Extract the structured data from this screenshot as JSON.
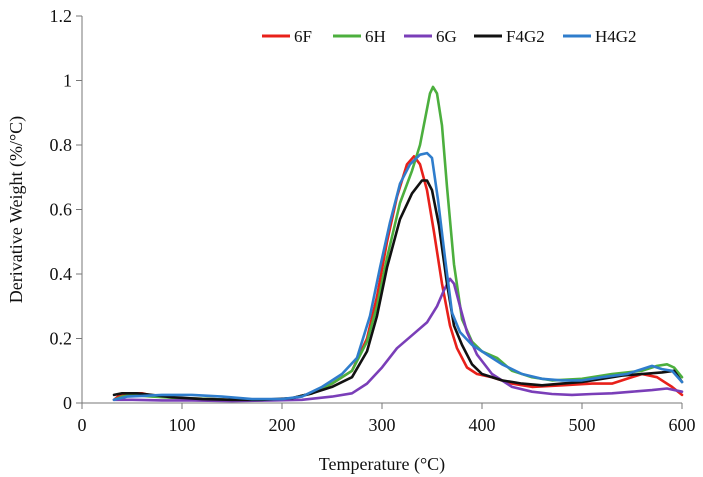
{
  "chart_data": {
    "type": "line",
    "title": "",
    "xlabel": "Temperature (°C)",
    "ylabel": "Derivative Weight  (%/°C)",
    "xlim": [
      0,
      600
    ],
    "ylim": [
      0,
      1.2
    ],
    "x_ticks": [
      0,
      100,
      200,
      300,
      400,
      500,
      600
    ],
    "x_tick_labels": [
      "0",
      "100",
      "200",
      "300",
      "400",
      "500",
      "600"
    ],
    "y_ticks": [
      0,
      0.2,
      0.4,
      0.6,
      0.8,
      1,
      1.2
    ],
    "y_tick_labels": [
      "0",
      "0.2",
      "0.4",
      "0.6",
      "0.8",
      "1",
      "1.2"
    ],
    "grid": false,
    "legend_position": "top-right",
    "series": [
      {
        "name": "6F",
        "color": "#e8201a",
        "points": [
          [
            32,
            0.01
          ],
          [
            38,
            0.025
          ],
          [
            50,
            0.03
          ],
          [
            60,
            0.03
          ],
          [
            75,
            0.02
          ],
          [
            100,
            0.015
          ],
          [
            130,
            0.012
          ],
          [
            160,
            0.008
          ],
          [
            190,
            0.01
          ],
          [
            210,
            0.015
          ],
          [
            230,
            0.03
          ],
          [
            250,
            0.06
          ],
          [
            270,
            0.1
          ],
          [
            285,
            0.2
          ],
          [
            295,
            0.33
          ],
          [
            305,
            0.5
          ],
          [
            315,
            0.64
          ],
          [
            325,
            0.74
          ],
          [
            332,
            0.765
          ],
          [
            338,
            0.74
          ],
          [
            345,
            0.66
          ],
          [
            352,
            0.53
          ],
          [
            360,
            0.37
          ],
          [
            368,
            0.24
          ],
          [
            375,
            0.17
          ],
          [
            385,
            0.11
          ],
          [
            395,
            0.09
          ],
          [
            410,
            0.08
          ],
          [
            430,
            0.06
          ],
          [
            450,
            0.05
          ],
          [
            480,
            0.055
          ],
          [
            510,
            0.06
          ],
          [
            530,
            0.06
          ],
          [
            545,
            0.075
          ],
          [
            560,
            0.09
          ],
          [
            575,
            0.08
          ],
          [
            590,
            0.05
          ],
          [
            600,
            0.025
          ]
        ]
      },
      {
        "name": "6H",
        "color": "#4caf3e",
        "points": [
          [
            32,
            0.01
          ],
          [
            40,
            0.02
          ],
          [
            50,
            0.025
          ],
          [
            70,
            0.02
          ],
          [
            100,
            0.015
          ],
          [
            130,
            0.012
          ],
          [
            160,
            0.008
          ],
          [
            190,
            0.01
          ],
          [
            210,
            0.015
          ],
          [
            230,
            0.03
          ],
          [
            250,
            0.06
          ],
          [
            270,
            0.1
          ],
          [
            285,
            0.19
          ],
          [
            295,
            0.3
          ],
          [
            305,
            0.45
          ],
          [
            318,
            0.62
          ],
          [
            330,
            0.72
          ],
          [
            338,
            0.8
          ],
          [
            343,
            0.88
          ],
          [
            348,
            0.96
          ],
          [
            351,
            0.98
          ],
          [
            355,
            0.96
          ],
          [
            360,
            0.86
          ],
          [
            365,
            0.67
          ],
          [
            372,
            0.43
          ],
          [
            380,
            0.26
          ],
          [
            390,
            0.19
          ],
          [
            400,
            0.16
          ],
          [
            415,
            0.14
          ],
          [
            430,
            0.1
          ],
          [
            450,
            0.08
          ],
          [
            470,
            0.07
          ],
          [
            500,
            0.075
          ],
          [
            530,
            0.09
          ],
          [
            560,
            0.1
          ],
          [
            575,
            0.115
          ],
          [
            585,
            0.12
          ],
          [
            592,
            0.11
          ],
          [
            600,
            0.08
          ]
        ]
      },
      {
        "name": "6G",
        "color": "#7a3eb8",
        "points": [
          [
            32,
            0.01
          ],
          [
            50,
            0.01
          ],
          [
            80,
            0.008
          ],
          [
            110,
            0.008
          ],
          [
            150,
            0.006
          ],
          [
            190,
            0.008
          ],
          [
            220,
            0.01
          ],
          [
            250,
            0.02
          ],
          [
            270,
            0.03
          ],
          [
            285,
            0.06
          ],
          [
            300,
            0.11
          ],
          [
            315,
            0.17
          ],
          [
            330,
            0.21
          ],
          [
            345,
            0.25
          ],
          [
            355,
            0.3
          ],
          [
            362,
            0.35
          ],
          [
            368,
            0.385
          ],
          [
            372,
            0.37
          ],
          [
            378,
            0.3
          ],
          [
            385,
            0.22
          ],
          [
            395,
            0.15
          ],
          [
            410,
            0.09
          ],
          [
            430,
            0.05
          ],
          [
            450,
            0.035
          ],
          [
            470,
            0.028
          ],
          [
            490,
            0.025
          ],
          [
            510,
            0.028
          ],
          [
            530,
            0.03
          ],
          [
            550,
            0.035
          ],
          [
            570,
            0.04
          ],
          [
            585,
            0.045
          ],
          [
            600,
            0.035
          ]
        ]
      },
      {
        "name": "F4G2",
        "color": "#111111",
        "points": [
          [
            32,
            0.025
          ],
          [
            40,
            0.03
          ],
          [
            55,
            0.03
          ],
          [
            70,
            0.025
          ],
          [
            90,
            0.018
          ],
          [
            120,
            0.012
          ],
          [
            150,
            0.01
          ],
          [
            180,
            0.01
          ],
          [
            210,
            0.015
          ],
          [
            230,
            0.03
          ],
          [
            250,
            0.05
          ],
          [
            270,
            0.08
          ],
          [
            285,
            0.16
          ],
          [
            295,
            0.27
          ],
          [
            305,
            0.42
          ],
          [
            318,
            0.57
          ],
          [
            330,
            0.65
          ],
          [
            340,
            0.69
          ],
          [
            345,
            0.69
          ],
          [
            350,
            0.66
          ],
          [
            357,
            0.55
          ],
          [
            365,
            0.37
          ],
          [
            372,
            0.24
          ],
          [
            380,
            0.18
          ],
          [
            390,
            0.12
          ],
          [
            400,
            0.09
          ],
          [
            420,
            0.07
          ],
          [
            440,
            0.06
          ],
          [
            460,
            0.055
          ],
          [
            480,
            0.06
          ],
          [
            500,
            0.065
          ],
          [
            520,
            0.075
          ],
          [
            540,
            0.085
          ],
          [
            560,
            0.09
          ],
          [
            580,
            0.095
          ],
          [
            592,
            0.1
          ],
          [
            600,
            0.065
          ]
        ]
      },
      {
        "name": "H4G2",
        "color": "#2f7dcc",
        "points": [
          [
            32,
            0.01
          ],
          [
            45,
            0.02
          ],
          [
            60,
            0.022
          ],
          [
            80,
            0.025
          ],
          [
            110,
            0.025
          ],
          [
            140,
            0.02
          ],
          [
            170,
            0.012
          ],
          [
            200,
            0.012
          ],
          [
            220,
            0.02
          ],
          [
            240,
            0.05
          ],
          [
            260,
            0.09
          ],
          [
            275,
            0.14
          ],
          [
            288,
            0.27
          ],
          [
            298,
            0.42
          ],
          [
            308,
            0.56
          ],
          [
            318,
            0.68
          ],
          [
            328,
            0.74
          ],
          [
            338,
            0.77
          ],
          [
            345,
            0.775
          ],
          [
            350,
            0.76
          ],
          [
            356,
            0.63
          ],
          [
            363,
            0.45
          ],
          [
            370,
            0.28
          ],
          [
            378,
            0.22
          ],
          [
            390,
            0.18
          ],
          [
            405,
            0.15
          ],
          [
            420,
            0.12
          ],
          [
            440,
            0.09
          ],
          [
            460,
            0.075
          ],
          [
            480,
            0.07
          ],
          [
            500,
            0.07
          ],
          [
            520,
            0.08
          ],
          [
            545,
            0.09
          ],
          [
            560,
            0.105
          ],
          [
            570,
            0.115
          ],
          [
            580,
            0.105
          ],
          [
            590,
            0.1
          ],
          [
            600,
            0.065
          ]
        ]
      }
    ]
  }
}
